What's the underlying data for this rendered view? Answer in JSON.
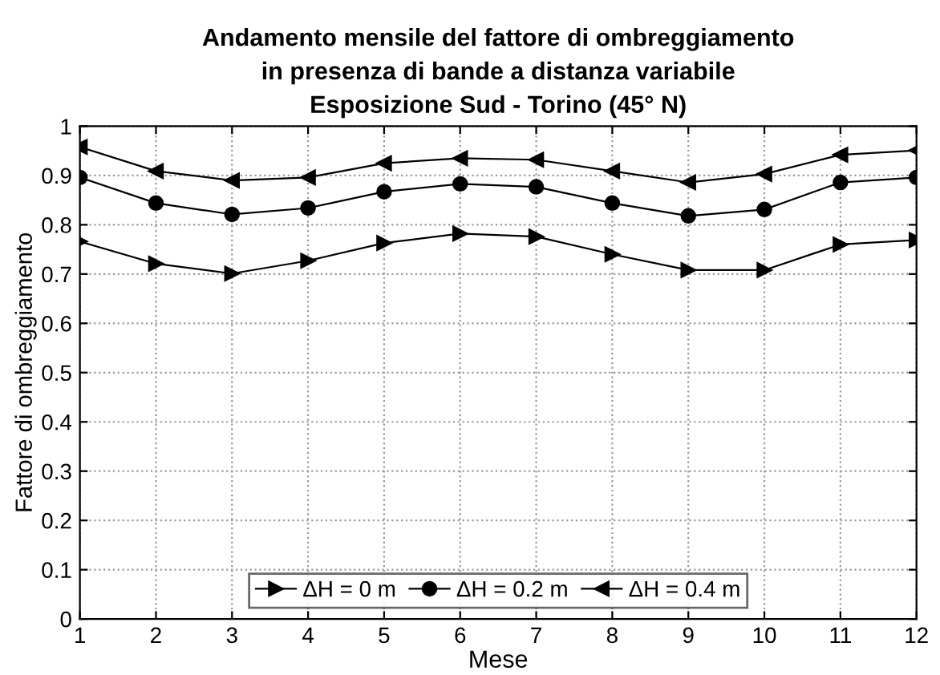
{
  "chart_data": {
    "type": "line",
    "title": "Andamento mensile del fattore di ombreggiamento\nin presenza di bande a distanza variabile\nEsposizione Sud - Torino (45° N)",
    "xlabel": "Mese",
    "ylabel": "Fattore di ombreggiamento",
    "x": [
      1,
      2,
      3,
      4,
      5,
      6,
      7,
      8,
      9,
      10,
      11,
      12
    ],
    "series": [
      {
        "name": "ΔH = 0 m",
        "color": "#000000",
        "marker": "triangle_right",
        "values": [
          0.766,
          0.721,
          0.701,
          0.727,
          0.763,
          0.782,
          0.776,
          0.74,
          0.708,
          0.708,
          0.76,
          0.769
        ]
      },
      {
        "name": "ΔH = 0.2 m",
        "color": "#000000",
        "marker": "circle",
        "values": [
          0.896,
          0.844,
          0.821,
          0.834,
          0.867,
          0.883,
          0.877,
          0.844,
          0.818,
          0.831,
          0.886,
          0.896
        ]
      },
      {
        "name": "ΔH = 0.4 m",
        "color": "#000000",
        "marker": "triangle_left",
        "values": [
          0.958,
          0.909,
          0.89,
          0.896,
          0.925,
          0.935,
          0.932,
          0.909,
          0.886,
          0.903,
          0.942,
          0.951
        ]
      }
    ],
    "xlim": [
      1,
      12
    ],
    "xticks": [
      1,
      2,
      3,
      4,
      5,
      6,
      7,
      8,
      9,
      10,
      11,
      12
    ],
    "ylim": [
      0,
      1
    ],
    "yticks": [
      0,
      0.1,
      0.2,
      0.3,
      0.4,
      0.5,
      0.6,
      0.7,
      0.8,
      0.9,
      1
    ],
    "grid": true,
    "legend": "bottom",
    "line_style": "solid"
  }
}
